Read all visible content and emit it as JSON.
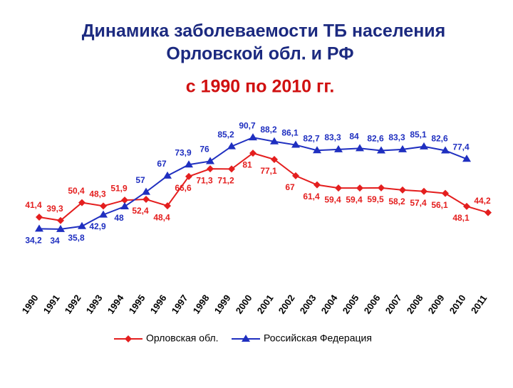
{
  "chart_data": {
    "type": "line",
    "title": [
      "Динамика заболеваемости ТБ населения",
      "Орловской обл. и РФ"
    ],
    "subtitle": "с 1990 по 2010 гг.",
    "categories": [
      "1990",
      "1991",
      "1992",
      "1993",
      "1994",
      "1995",
      "1996",
      "1997",
      "1998",
      "1999",
      "2000",
      "2001",
      "2002",
      "2003",
      "2004",
      "2005",
      "2006",
      "2007",
      "2008",
      "2009",
      "2010",
      "2011"
    ],
    "ylim": [
      0,
      100
    ],
    "series": [
      {
        "name": "Орловская обл.",
        "color": "#e41e1e",
        "marker": "diamond",
        "values": [
          41.4,
          39.3,
          50.4,
          48.3,
          51.9,
          52.4,
          48.4,
          66.6,
          71.3,
          71.2,
          81,
          77.1,
          67,
          61.4,
          59.4,
          59.4,
          59.5,
          58.2,
          57.4,
          56.1,
          48.1,
          44.2
        ],
        "value_labels": [
          "41,4",
          "39,3",
          "50,4",
          "48,3",
          "51,9",
          "52,4",
          "48,4",
          "66,6",
          "71,3",
          "71,2",
          "81",
          "77,1",
          "67",
          "61,4",
          "59,4",
          "59,4",
          "59,5",
          "58,2",
          "57,4",
          "56,1",
          "48,1",
          "44,2"
        ]
      },
      {
        "name": "Российская Федерация",
        "color": "#1f2fc0",
        "marker": "triangle",
        "values": [
          34.2,
          34,
          35.8,
          42.9,
          48,
          57,
          67,
          73.9,
          76,
          85.2,
          90.7,
          88.2,
          86.1,
          82.7,
          83.3,
          84,
          82.6,
          83.3,
          85.1,
          82.6,
          77.4,
          null
        ],
        "value_labels": [
          "34,2",
          "34",
          "35,8",
          "42,9",
          "48",
          "57",
          "67",
          "73,9",
          "76",
          "85,2",
          "90,7",
          "88,2",
          "86,1",
          "82,7",
          "83,3",
          "84",
          "82,6",
          "83,3",
          "85,1",
          "82,6",
          "77,4",
          null
        ]
      }
    ]
  }
}
